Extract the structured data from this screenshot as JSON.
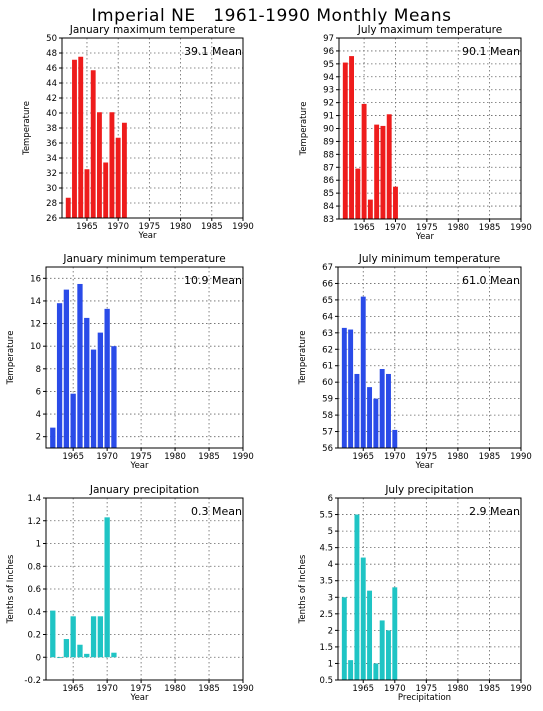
{
  "title": "Imperial NE   1961-1990 Monthly Means",
  "chart_data": [
    {
      "id": "jan-max",
      "type": "bar",
      "title": "January maximum temperature",
      "xlabel": "Year",
      "ylabel": "Temperature",
      "mean_label": "39.1 Mean",
      "color": "#ee1c1c",
      "xlim": [
        1961,
        1990
      ],
      "ylim": [
        26,
        50
      ],
      "yticks": [
        26,
        28,
        30,
        32,
        34,
        36,
        38,
        40,
        42,
        44,
        46,
        48,
        50
      ],
      "xticks": [
        1965,
        1970,
        1975,
        1980,
        1985,
        1990
      ],
      "x": [
        1962,
        1963,
        1964,
        1965,
        1966,
        1967,
        1968,
        1969,
        1970,
        1971,
        1972
      ],
      "values": [
        28.7,
        47.1,
        47.5,
        32.5,
        45.7,
        40.1,
        33.4,
        40.1,
        36.7,
        38.7,
        null
      ]
    },
    {
      "id": "jul-max",
      "type": "bar",
      "title": "July maximum temperature",
      "xlabel": "Year",
      "ylabel": "Temperature",
      "mean_label": "90.1 Mean",
      "color": "#ee1c1c",
      "xlim": [
        1961,
        1990
      ],
      "ylim": [
        83,
        97
      ],
      "yticks": [
        83,
        84,
        85,
        86,
        87,
        88,
        89,
        90,
        91,
        92,
        93,
        94,
        95,
        96,
        97
      ],
      "xticks": [
        1965,
        1970,
        1975,
        1980,
        1985,
        1990
      ],
      "x": [
        1962,
        1963,
        1964,
        1965,
        1966,
        1967,
        1968,
        1969,
        1970
      ],
      "values": [
        95.1,
        95.6,
        86.9,
        91.9,
        84.5,
        90.3,
        90.2,
        91.1,
        85.5
      ]
    },
    {
      "id": "jan-min",
      "type": "bar",
      "title": "January minimum temperature",
      "xlabel": "Year",
      "ylabel": "Temperature",
      "mean_label": "10.9 Mean",
      "color": "#2a4be8",
      "xlim": [
        1961,
        1990
      ],
      "ylim": [
        1,
        17
      ],
      "yticks": [
        2,
        4,
        6,
        8,
        10,
        12,
        14,
        16
      ],
      "xticks": [
        1965,
        1970,
        1975,
        1980,
        1985,
        1990
      ],
      "x": [
        1962,
        1963,
        1964,
        1965,
        1966,
        1967,
        1968,
        1969,
        1970,
        1971
      ],
      "values": [
        2.8,
        13.8,
        15.0,
        5.8,
        15.5,
        12.5,
        9.7,
        11.2,
        13.3,
        10.0
      ]
    },
    {
      "id": "jul-min",
      "type": "bar",
      "title": "July minimum temperature",
      "xlabel": "Year",
      "ylabel": "Temperature",
      "mean_label": "61.0 Mean",
      "color": "#2a4be8",
      "xlim": [
        1961,
        1990
      ],
      "ylim": [
        56,
        67
      ],
      "yticks": [
        56,
        57,
        58,
        59,
        60,
        61,
        62,
        63,
        64,
        65,
        66,
        67
      ],
      "xticks": [
        1965,
        1970,
        1975,
        1980,
        1985,
        1990
      ],
      "x": [
        1962,
        1963,
        1964,
        1965,
        1966,
        1967,
        1968,
        1969,
        1970
      ],
      "values": [
        63.3,
        63.2,
        60.5,
        65.2,
        59.7,
        59.0,
        60.8,
        60.5,
        57.1
      ]
    },
    {
      "id": "jan-precip",
      "type": "bar",
      "title": "January precipitation",
      "xlabel": "Year",
      "ylabel": "Tenths of Inches",
      "mean_label": "0.3 Mean",
      "color": "#1fc4c4",
      "xlim": [
        1961,
        1990
      ],
      "ylim": [
        -0.2,
        1.4
      ],
      "yticks": [
        -0.2,
        0,
        0.2,
        0.4,
        0.6,
        0.8,
        1,
        1.2,
        1.4
      ],
      "xticks": [
        1965,
        1970,
        1975,
        1980,
        1985,
        1990
      ],
      "x": [
        1962,
        1963,
        1964,
        1965,
        1966,
        1967,
        1968,
        1969,
        1970,
        1971
      ],
      "values": [
        0.41,
        0.0,
        0.16,
        0.36,
        0.11,
        0.03,
        0.36,
        0.36,
        1.23,
        0.04
      ]
    },
    {
      "id": "jul-precip",
      "type": "bar",
      "title": "July precipitation",
      "xlabel": "Precipitation",
      "ylabel": "Tenths of Inches",
      "mean_label": "2.9 Mean",
      "color": "#1fc4c4",
      "xlim": [
        1961,
        1990
      ],
      "ylim": [
        0.5,
        6
      ],
      "yticks": [
        0.5,
        1,
        1.5,
        2,
        2.5,
        3,
        3.5,
        4,
        4.5,
        5,
        5.5,
        6
      ],
      "xticks": [
        1965,
        1970,
        1975,
        1980,
        1985,
        1990
      ],
      "x": [
        1962,
        1963,
        1964,
        1965,
        1966,
        1967,
        1968,
        1969,
        1970
      ],
      "values": [
        3.0,
        1.1,
        5.5,
        4.2,
        3.2,
        1.0,
        2.3,
        2.0,
        3.3
      ]
    }
  ]
}
